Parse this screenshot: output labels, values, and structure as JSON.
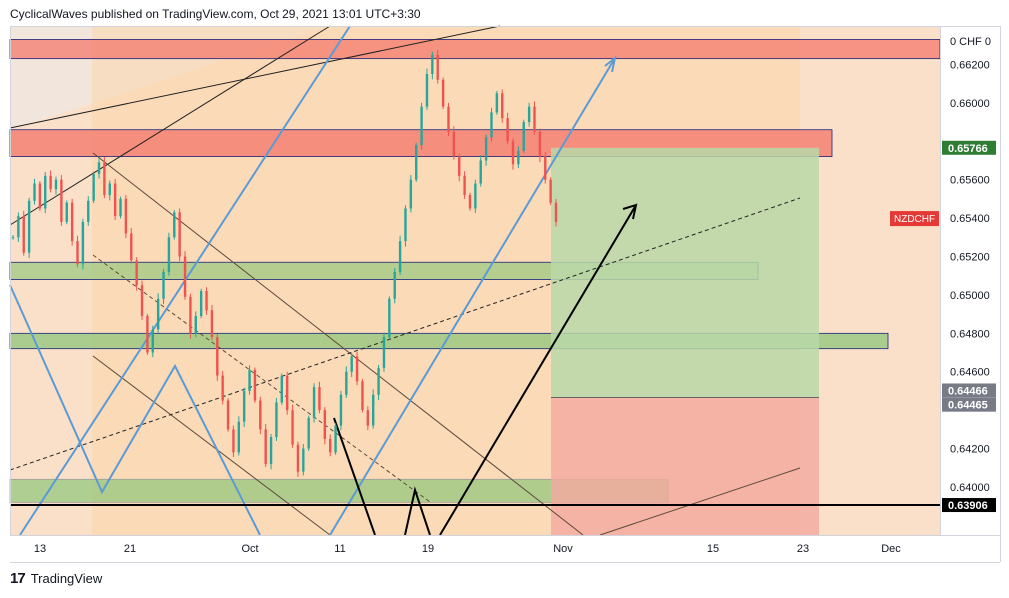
{
  "header": {
    "published_line": "CyclicalWaves published on TradingView.com, Oct 29, 2021 13:01 UTC+3:30"
  },
  "footer": {
    "logo_label": "TradingView",
    "logo_icon": "tradingview-logo-icon"
  },
  "colors": {
    "background": "#fbe0c9",
    "up_candle": "#26a69a",
    "down_candle": "#ef5350",
    "trendline_blue": "#5b9bd5",
    "resistance_zone": "#f47a6e",
    "support_zone": "#8fc67a",
    "profit_zone": "#b8d8a8",
    "stop_zone": "#f4a9a0",
    "last_price_label": "#2e7d32",
    "symbol_label": "#e53935"
  },
  "chart_data": {
    "type": "candlestick",
    "symbol": "NZDCHF",
    "currency_label": "CHF",
    "y_axis_top_label": "0",
    "y_ticks": [
      "0.66200",
      "0.66000",
      "0.65600",
      "0.65400",
      "0.65200",
      "0.65000",
      "0.64800",
      "0.64600",
      "0.64200",
      "0.64000"
    ],
    "ylim": [
      0.6375,
      0.664
    ],
    "x_ticks": [
      "13",
      "21",
      "Oct",
      "11",
      "19",
      "Nov",
      "15",
      "23",
      "Dec"
    ],
    "price_labels": [
      {
        "text": "0.65766",
        "value": 0.65766,
        "role": "last-price"
      },
      {
        "text": "0.64466",
        "value": 0.64466,
        "role": "level"
      },
      {
        "text": "0.64465",
        "value": 0.64465,
        "role": "level"
      },
      {
        "text": "0.63906",
        "value": 0.63906,
        "role": "level"
      }
    ],
    "zones": [
      {
        "name": "resistance-top",
        "from": 0.6623,
        "to": 0.6633
      },
      {
        "name": "resistance-mid",
        "from": 0.6572,
        "to": 0.6586
      },
      {
        "name": "support-upper",
        "from": 0.6508,
        "to": 0.6517
      },
      {
        "name": "support-mid",
        "from": 0.6472,
        "to": 0.648
      },
      {
        "name": "support-lower",
        "from": 0.6392,
        "to": 0.6404
      },
      {
        "name": "take-profit",
        "from": 0.64466,
        "to": 0.65766
      },
      {
        "name": "stop-loss",
        "from": 0.6375,
        "to": 0.64466
      }
    ],
    "candle_path": [
      0.653,
      0.6541,
      0.6522,
      0.6549,
      0.6558,
      0.6545,
      0.6562,
      0.6555,
      0.656,
      0.6538,
      0.6548,
      0.6528,
      0.6516,
      0.6538,
      0.6549,
      0.6563,
      0.6569,
      0.6552,
      0.6558,
      0.6541,
      0.655,
      0.6532,
      0.6518,
      0.6505,
      0.6489,
      0.647,
      0.6482,
      0.6498,
      0.6512,
      0.653,
      0.6543,
      0.652,
      0.6499,
      0.648,
      0.6489,
      0.6502,
      0.6492,
      0.6478,
      0.6458,
      0.6445,
      0.643,
      0.6418,
      0.6434,
      0.645,
      0.6461,
      0.6445,
      0.643,
      0.6412,
      0.6426,
      0.6444,
      0.6458,
      0.644,
      0.6422,
      0.6408,
      0.642,
      0.6436,
      0.6452,
      0.644,
      0.6425,
      0.6418,
      0.6432,
      0.6448,
      0.646,
      0.6468,
      0.6455,
      0.644,
      0.6432,
      0.6448,
      0.6462,
      0.6478,
      0.6498,
      0.6512,
      0.6528,
      0.6545,
      0.656,
      0.6578,
      0.6598,
      0.6615,
      0.6625,
      0.6612,
      0.6598,
      0.6585,
      0.6572,
      0.6562,
      0.6552,
      0.6545,
      0.6558,
      0.657,
      0.6582,
      0.6595,
      0.6605,
      0.6592,
      0.658,
      0.6568,
      0.6575,
      0.659,
      0.6598,
      0.6585,
      0.6572,
      0.656,
      0.6548,
      0.6538
    ]
  }
}
